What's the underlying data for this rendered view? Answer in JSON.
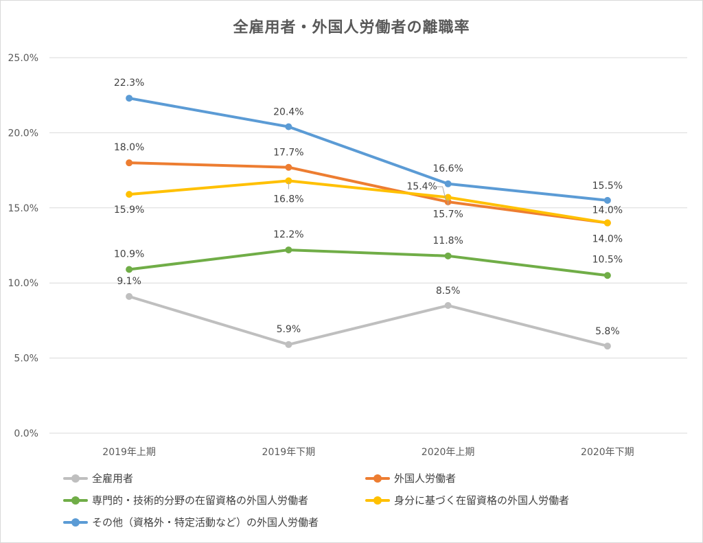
{
  "chart_data": {
    "type": "line",
    "title": "全雇用者・外国人労働者の離職率",
    "categories": [
      "2019年上期",
      "2019年下期",
      "2020年上期",
      "2020年下期"
    ],
    "ylim": [
      0,
      25
    ],
    "yticks": [
      "0.0%",
      "5.0%",
      "10.0%",
      "15.0%",
      "20.0%",
      "25.0%"
    ],
    "grid": true,
    "legend_position": "bottom",
    "series": [
      {
        "name": "全雇用者",
        "color": "#bfbfbf",
        "values": [
          9.1,
          5.9,
          8.5,
          5.8
        ],
        "labels": [
          "9.1%",
          "5.9%",
          "8.5%",
          "5.8%"
        ]
      },
      {
        "name": "外国人労働者",
        "color": "#ed7d31",
        "values": [
          18.0,
          17.7,
          15.4,
          14.0
        ],
        "labels": [
          "18.0%",
          "17.7%",
          "15.4%",
          "14.0%"
        ]
      },
      {
        "name": "専門的・技術的分野の在留資格の外国人労働者",
        "color": "#70ad47",
        "values": [
          10.9,
          12.2,
          11.8,
          10.5
        ],
        "labels": [
          "10.9%",
          "12.2%",
          "11.8%",
          "10.5%"
        ]
      },
      {
        "name": "身分に基づく在留資格の外国人労働者",
        "color": "#ffc000",
        "values": [
          15.9,
          16.8,
          15.7,
          14.0
        ],
        "labels": [
          "15.9%",
          "16.8%",
          "15.7%",
          "14.0%"
        ]
      },
      {
        "name": "その他（資格外・特定活動など）の外国人労働者",
        "color": "#5b9bd5",
        "values": [
          22.3,
          20.4,
          16.6,
          15.5
        ],
        "labels": [
          "22.3%",
          "20.4%",
          "16.6%",
          "15.5%"
        ]
      }
    ]
  }
}
